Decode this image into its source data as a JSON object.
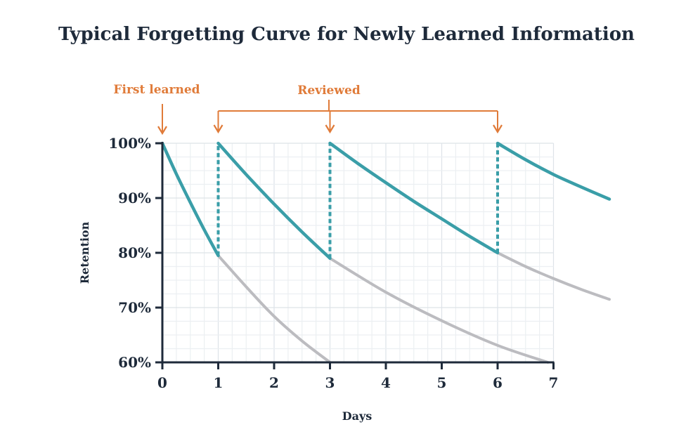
{
  "chart_data": {
    "type": "line",
    "title": "Typical Forgetting Curve for Newly Learned Information",
    "xlabel": "Days",
    "ylabel": "Retention",
    "xlim": [
      0,
      8
    ],
    "ylim": [
      60,
      100
    ],
    "x_ticks": [
      "0",
      "1",
      "2",
      "3",
      "4",
      "5",
      "6",
      "7"
    ],
    "y_ticks": [
      "60%",
      "70%",
      "80%",
      "90%",
      "100%"
    ],
    "grid": true,
    "colors": {
      "review": "#3a9ea8",
      "decay": "#bcbcc0",
      "annotation": "#e07b39",
      "axis": "#1e2a3a"
    },
    "series": [
      {
        "role": "review",
        "points": [
          [
            0,
            100
          ],
          [
            0.25,
            94.4
          ],
          [
            0.5,
            89.2
          ],
          [
            0.75,
            84.2
          ],
          [
            1,
            79.5
          ]
        ]
      },
      {
        "role": "review",
        "points": [
          [
            1,
            100
          ],
          [
            1.5,
            94.3
          ],
          [
            2,
            88.9
          ],
          [
            2.5,
            83.8
          ],
          [
            3,
            79
          ]
        ]
      },
      {
        "role": "review",
        "points": [
          [
            3,
            100
          ],
          [
            3.5,
            96.3
          ],
          [
            4,
            92.8
          ],
          [
            4.5,
            89.4
          ],
          [
            5,
            86.2
          ],
          [
            5.5,
            83
          ],
          [
            6,
            80
          ]
        ]
      },
      {
        "role": "review",
        "points": [
          [
            6,
            100
          ],
          [
            6.5,
            97
          ],
          [
            7,
            94.3
          ],
          [
            7.5,
            92
          ],
          [
            8,
            89.8
          ]
        ]
      },
      {
        "role": "decay",
        "points": [
          [
            1,
            79.5
          ],
          [
            1.5,
            73.8
          ],
          [
            2,
            68.4
          ],
          [
            2.5,
            63.9
          ],
          [
            3,
            60
          ]
        ]
      },
      {
        "role": "decay",
        "points": [
          [
            3,
            79
          ],
          [
            4,
            72.8
          ],
          [
            5,
            67.6
          ],
          [
            6,
            63.1
          ],
          [
            6.9,
            60
          ]
        ]
      },
      {
        "role": "decay",
        "points": [
          [
            6,
            80
          ],
          [
            6.5,
            77.5
          ],
          [
            7,
            75.3
          ],
          [
            7.5,
            73.3
          ],
          [
            8,
            71.5
          ]
        ]
      }
    ],
    "review_jumps": [
      [
        1,
        79.5
      ],
      [
        3,
        79
      ],
      [
        6,
        80
      ]
    ],
    "annotations": {
      "first_learned": {
        "label": "First learned",
        "day": 0
      },
      "reviewed": {
        "label": "Reviewed",
        "days": [
          1,
          3,
          6
        ]
      }
    }
  }
}
